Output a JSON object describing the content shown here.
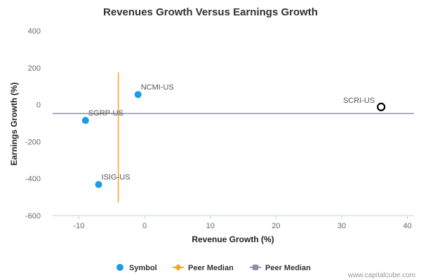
{
  "chart_data": {
    "type": "scatter",
    "title": "Revenues Growth Versus Earnings Growth",
    "xlabel": "Revenue Growth (%)",
    "ylabel": "Earnings Growth (%)",
    "xlim": [
      -14,
      41
    ],
    "ylim": [
      -600,
      400
    ],
    "x_ticks": [
      -10,
      0,
      10,
      20,
      30,
      40
    ],
    "y_ticks": [
      400,
      200,
      0,
      -200,
      -400,
      -600
    ],
    "points": [
      {
        "label": "NCMI-US",
        "x": -1,
        "y": 55,
        "style": "filled"
      },
      {
        "label": "SGRP-US",
        "x": -9,
        "y": -85,
        "style": "filled"
      },
      {
        "label": "ISIG-US",
        "x": -7,
        "y": -432,
        "style": "filled"
      },
      {
        "label": "SCRI-US",
        "x": 36,
        "y": -12,
        "style": "hollow"
      }
    ],
    "peer_median_x": {
      "x": -4,
      "y_from": -530,
      "y_to": 175
    },
    "peer_median_y": {
      "y": -48
    },
    "legend": [
      {
        "label": "Symbol",
        "marker": "circle",
        "color": "#1a9be8"
      },
      {
        "label": "Peer Median",
        "marker": "diamond-line",
        "color": "#f5a623"
      },
      {
        "label": "Peer Median",
        "marker": "square-line",
        "color": "#8a93a6"
      }
    ],
    "legend_placement": "bottom",
    "colors": {
      "symbol": "#1a9be8",
      "median_x": "#f5a623",
      "median_y": "#8a93a6",
      "hollow": "#000000"
    },
    "grid": false
  },
  "credit": "www.capitalcube.com"
}
